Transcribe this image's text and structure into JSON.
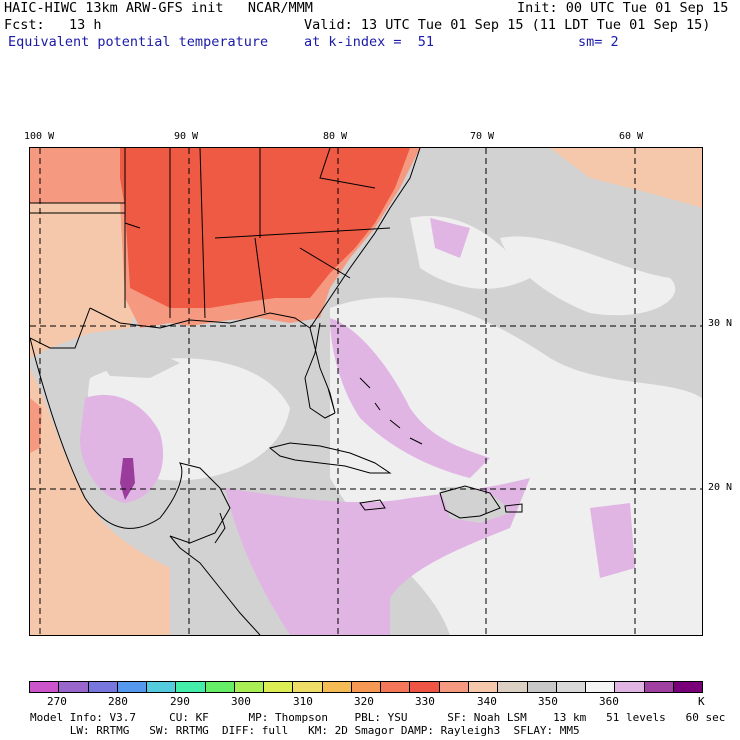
{
  "header": {
    "line1_left": "HAIC-HIWC 13km ARW-GFS init   NCAR/MMM",
    "line1_right": "Init: 00 UTC Tue 01 Sep 15",
    "line2_left": "Fcst:   13 h",
    "line2_right": "Valid: 13 UTC Tue 01 Sep 15 (11 LDT Tue 01 Sep 15)",
    "line3_field": "Equivalent potential temperature",
    "line3_mid": "at k-index =  51",
    "line3_right": "sm= 2"
  },
  "map": {
    "lon_labels": [
      "100 W",
      "90 W",
      "80 W",
      "70 W",
      "60 W"
    ],
    "lat_labels": [
      "30 N",
      "20 N"
    ],
    "colors": {
      "land_hot": "#ee5a44",
      "land_warm": "#f59a80",
      "land_mild": "#f5c8ac",
      "sea_gray": "#d2d2d2",
      "sea_light": "#efefef",
      "moist_lilac": "#e0b5e4",
      "moist_purple": "#9a3c9c",
      "outline": "#000000"
    }
  },
  "colorbar": {
    "colors": [
      "#cc55cc",
      "#9966cc",
      "#7777dd",
      "#5599ee",
      "#55ccdd",
      "#44eeaa",
      "#66ee66",
      "#aaee55",
      "#ddee55",
      "#eedd66",
      "#f5bb55",
      "#f59955",
      "#f5775a",
      "#ee5544",
      "#f59a80",
      "#f5c8ac",
      "#dcd0c4",
      "#c8c8c8",
      "#d8d8d8",
      "#f4f4f4",
      "#e0b5e4",
      "#a040a0",
      "#7a007a"
    ],
    "labels": [
      "270",
      "280",
      "290",
      "300",
      "310",
      "320",
      "330",
      "340",
      "350",
      "360",
      "K"
    ]
  },
  "footer": {
    "line1": "Model Info: V3.7     CU: KF      MP: Thompson    PBL: YSU      SF: Noah LSM    13 km   51 levels   60 sec",
    "line2": "      LW: RRTMG   SW: RRTMG  DIFF: full   KM: 2D Smagor DAMP: Rayleigh3  SFLAY: MM5"
  }
}
